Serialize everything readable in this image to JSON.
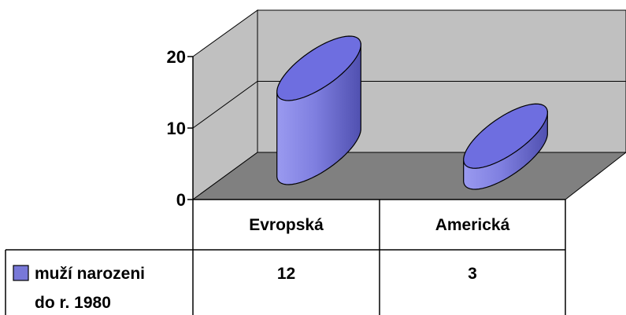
{
  "chart_data": {
    "type": "bar",
    "style": "3d-cylinder",
    "categories": [
      "Evropská",
      "Americká"
    ],
    "series": [
      {
        "name": "muží narozeni do r. 1980",
        "values": [
          12,
          3
        ],
        "color": "#7878d8"
      }
    ],
    "y_ticks": [
      "0",
      "10",
      "20"
    ],
    "ylim": [
      0,
      20
    ],
    "title": "",
    "xlabel": "",
    "ylabel": "",
    "grid": true,
    "legend": "data-table",
    "data_table": true,
    "colors": {
      "back_wall": "#c0c0c0",
      "floor": "#808080",
      "bar": "#7878d8",
      "bar_top": "#6e6ee0"
    }
  }
}
